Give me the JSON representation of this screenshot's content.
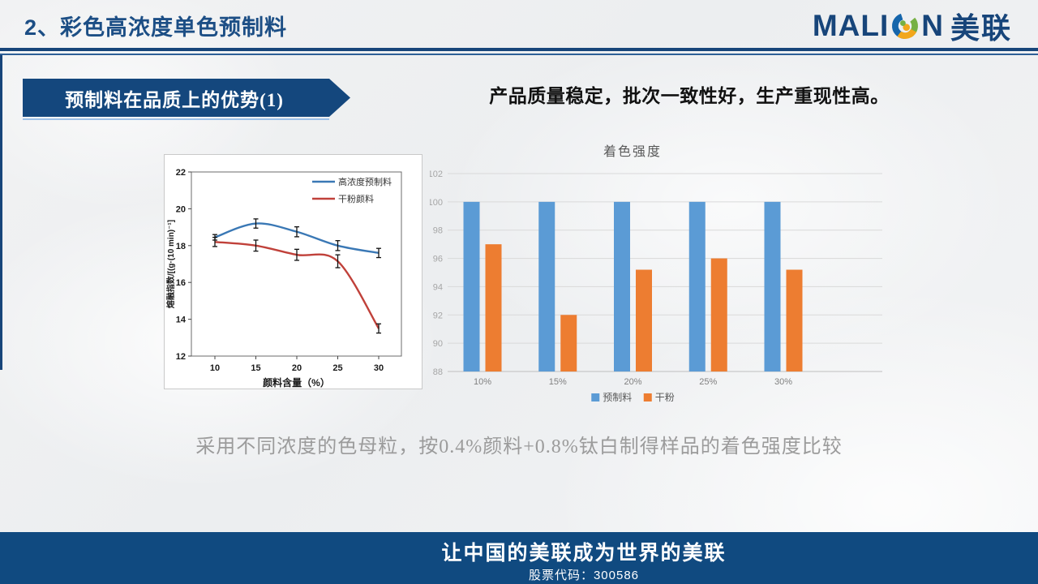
{
  "header": {
    "title": "2、彩色高浓度单色预制料",
    "logo": {
      "en_prefix": "MALI",
      "en_suffix": "N",
      "cn": "美联"
    }
  },
  "banner": {
    "label": "预制料在品质上的优势(1)"
  },
  "headline": "产品质量稳定，批次一致性好，生产重现性高。",
  "caption": "采用不同浓度的色母粒，按0.4%颜料+0.8%钛白制得样品的着色强度比较",
  "footer": {
    "slogan": "让中国的美联成为世界的美联",
    "stock": "股票代码：300586"
  },
  "colors": {
    "brand_blue": "#17457a",
    "line_blue": "#3a78b5",
    "line_red": "#c0413a",
    "bar_blue": "#5b9bd5",
    "bar_orange": "#ed7d31",
    "grid": "#d9d9d9",
    "axis_gray": "#a6a6a6"
  },
  "chart_data": [
    {
      "type": "line",
      "title": "",
      "x": [
        10,
        15,
        20,
        25,
        30
      ],
      "xlabel": "颜料含量（%）",
      "ylabel": "熔融指数/[(g·(10 min)⁻¹]",
      "ylim": [
        12,
        22
      ],
      "yticks": [
        12,
        14,
        16,
        18,
        20,
        22
      ],
      "grid": false,
      "legend_position": "top-right",
      "series": [
        {
          "name": "高浓度预制料",
          "color": "#3a78b5",
          "values": [
            18.45,
            19.2,
            18.75,
            18.0,
            17.6
          ],
          "err": [
            0.15,
            0.25,
            0.27,
            0.27,
            0.25
          ]
        },
        {
          "name": "干粉颜料",
          "color": "#c0413a",
          "values": [
            18.2,
            18.0,
            17.5,
            17.15,
            13.5
          ],
          "err": [
            0.25,
            0.3,
            0.3,
            0.35,
            0.25
          ]
        }
      ]
    },
    {
      "type": "bar",
      "title": "着色强度",
      "categories": [
        "10%",
        "15%",
        "20%",
        "25%",
        "30%"
      ],
      "ylim": [
        88,
        102
      ],
      "ytick_step": 2,
      "grid": true,
      "legend_position": "bottom",
      "series": [
        {
          "name": "预制料",
          "color": "#5b9bd5",
          "values": [
            100,
            100,
            100,
            100,
            100
          ]
        },
        {
          "name": "干粉",
          "color": "#ed7d31",
          "values": [
            97,
            92,
            95.2,
            96,
            95.2
          ]
        }
      ]
    }
  ]
}
